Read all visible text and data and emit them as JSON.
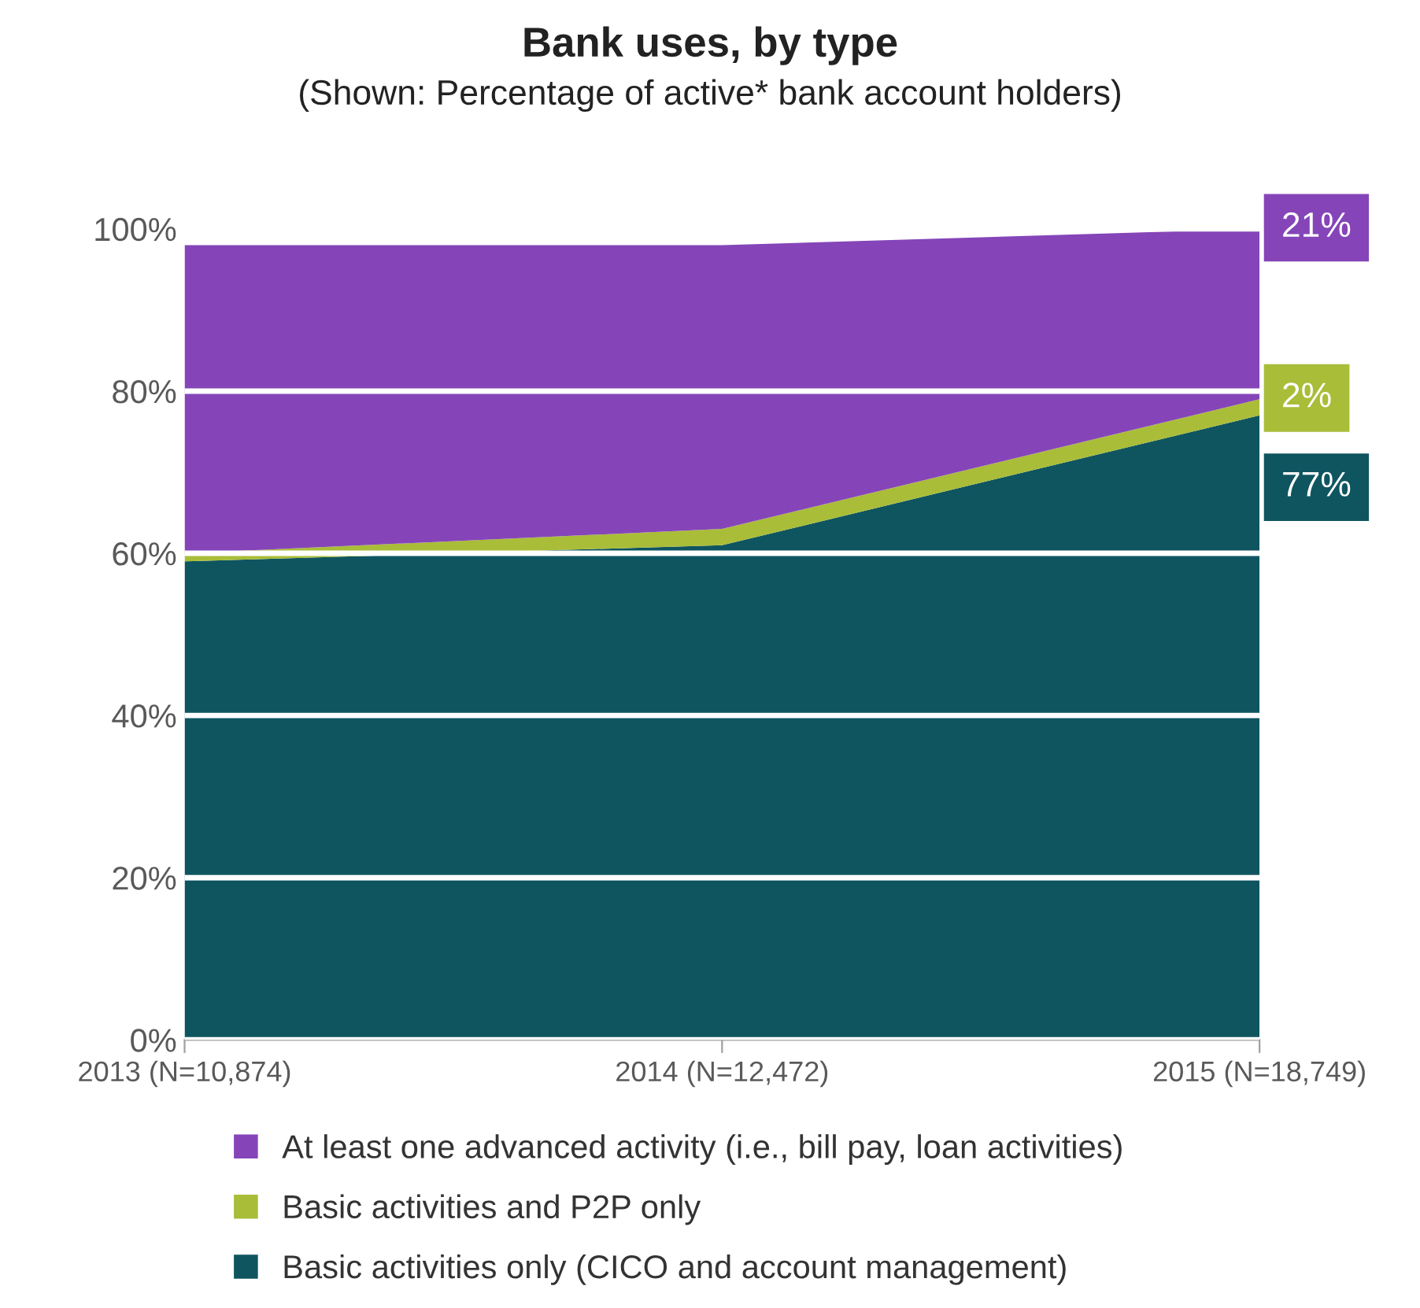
{
  "chart_data": {
    "type": "area",
    "stacked": true,
    "title": "Bank uses, by type",
    "subtitle": "(Shown: Percentage of active* bank account holders)",
    "categories": [
      "2013 (N=10,874)",
      "2014 (N=12,472)",
      "2015 (N=18,749)"
    ],
    "series": [
      {
        "name": "Basic activities only (CICO and account management)",
        "color": "#0f5560",
        "values": [
          59,
          61,
          77
        ],
        "value_labels": [
          null,
          null,
          "77%"
        ]
      },
      {
        "name": "Basic activities and P2P only",
        "color": "#a9bd38",
        "values": [
          1,
          2,
          2
        ],
        "value_labels": [
          null,
          null,
          "2%"
        ]
      },
      {
        "name": "At least one advanced activity (i.e., bill pay, loan activities)",
        "color": "#8545b8",
        "values": [
          38,
          35,
          21
        ],
        "value_labels": [
          null,
          null,
          "21%"
        ]
      }
    ],
    "ylim": [
      0,
      100
    ],
    "yticks": [
      {
        "value": 0,
        "label": "0%"
      },
      {
        "value": 20,
        "label": "20%"
      },
      {
        "value": 40,
        "label": "40%"
      },
      {
        "value": 60,
        "label": "60%"
      },
      {
        "value": 80,
        "label": "80%"
      },
      {
        "value": 100,
        "label": "100%"
      }
    ],
    "grid": "y",
    "legend": "bottom"
  }
}
